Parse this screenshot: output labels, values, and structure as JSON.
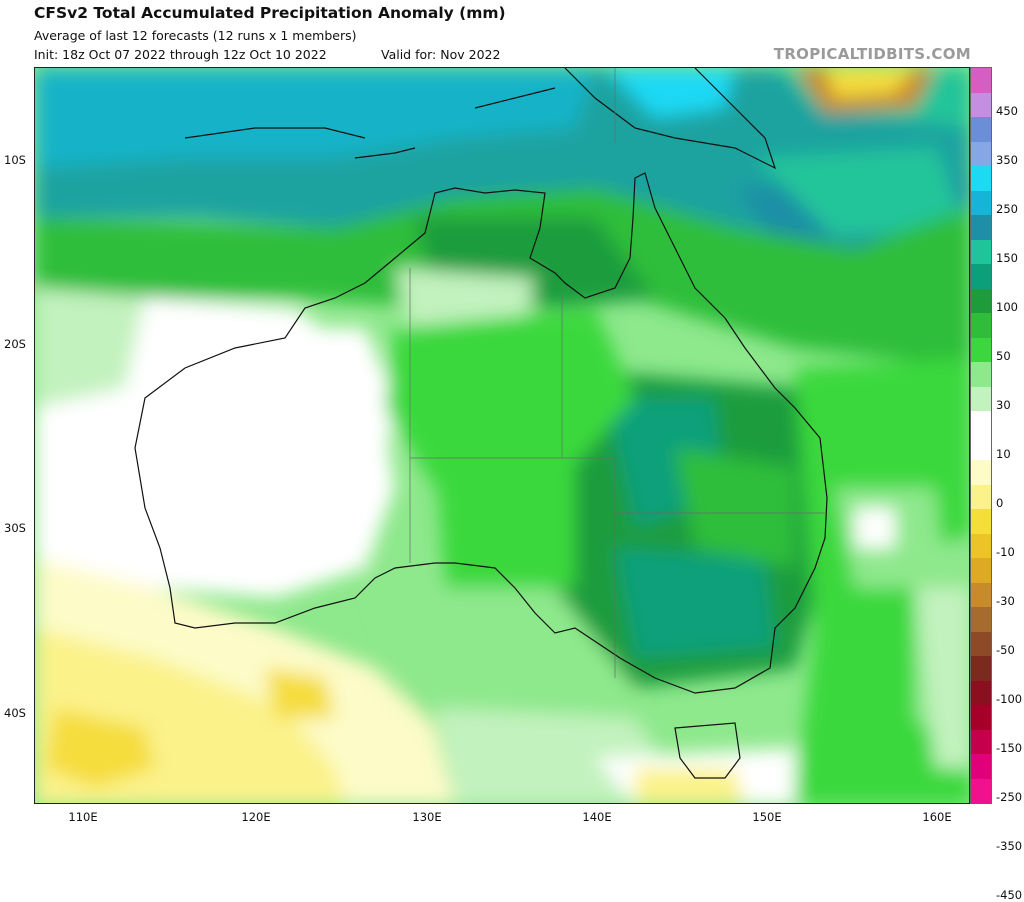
{
  "header": {
    "title": "CFSv2 Total Accumulated Precipitation Anomaly (mm)",
    "subtitle": "Average of last 12 forecasts (12 runs x 1 members)",
    "init": "Init: 18z Oct 07 2022 through 12z Oct 10 2022",
    "valid": "Valid for: Nov 2022",
    "brand": "TROPICALTIDBITS.COM"
  },
  "map": {
    "region": "Australia",
    "lat_labels": [
      "10S",
      "20S",
      "30S",
      "40S"
    ],
    "lon_labels": [
      "110E",
      "120E",
      "130E",
      "140E",
      "150E",
      "160E"
    ]
  },
  "legend": {
    "levels": [
      "450",
      "350",
      "250",
      "150",
      "100",
      "50",
      "30",
      "10",
      "0",
      "-10",
      "-30",
      "-50",
      "-100",
      "-150",
      "-250",
      "-350",
      "-450"
    ],
    "colors": [
      "#d65ec3",
      "#c48fe0",
      "#6b8ed8",
      "#85a7e8",
      "#1fd9f4",
      "#17b3d8",
      "#1d8fa6",
      "#21c49a",
      "#0aa07a",
      "#1d9c3c",
      "#2fbe3a",
      "#3ad83c",
      "#8ee88c",
      "#c2f2be",
      "#ffffff",
      "#ffffff",
      "#fdfbc8",
      "#fbf28a",
      "#f5dd3c",
      "#ecc42a",
      "#deaa26",
      "#c98a2a",
      "#a66c2e",
      "#8e4a28",
      "#7c2a1e",
      "#8b0f1e",
      "#a5002a",
      "#c4004c",
      "#e0007a",
      "#f0118f"
    ]
  }
}
